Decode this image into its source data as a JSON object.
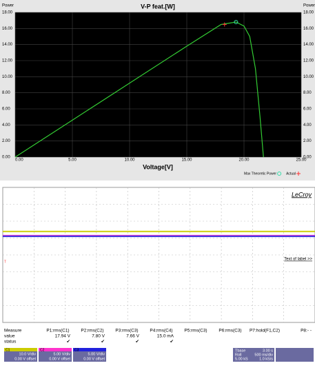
{
  "chart_data": {
    "type": "line",
    "title": "V-P feat.[W]",
    "y_label": "Power",
    "x_label": "Voltage[V]",
    "x": [
      0,
      5,
      10,
      15,
      18,
      19.3,
      20,
      20.5,
      21,
      21.4,
      21.7
    ],
    "series": [
      {
        "color": "#33cc33",
        "values": [
          0,
          4.6,
          9.2,
          13.8,
          16.5,
          16.8,
          16.3,
          15.0,
          11.0,
          5.0,
          0
        ]
      },
      {
        "name": "Max Theoretic Power",
        "color": "#33ddaa",
        "marker": "circle",
        "x": [
          19.3
        ],
        "values": [
          16.8
        ]
      },
      {
        "name": "Actual",
        "color": "#ff3333",
        "marker": "plus",
        "x": [
          18.3
        ],
        "values": [
          16.5
        ]
      }
    ],
    "xlim": [
      0,
      25
    ],
    "xticks": [
      {
        "value": 0,
        "label": "0.00"
      },
      {
        "value": 5,
        "label": "5.00"
      },
      {
        "value": 10,
        "label": "10.00"
      },
      {
        "value": 15,
        "label": "15.00"
      },
      {
        "value": 20,
        "label": "20.00"
      },
      {
        "value": 25,
        "label": "25.00"
      }
    ],
    "ylim": [
      0,
      18
    ],
    "yticks": [
      {
        "value": 0,
        "label": "0.00"
      },
      {
        "value": 2,
        "label": "2.00"
      },
      {
        "value": 4,
        "label": "4.00"
      },
      {
        "value": 6,
        "label": "6.00"
      },
      {
        "value": 8,
        "label": "8.00"
      },
      {
        "value": 10,
        "label": "10.00"
      },
      {
        "value": 12,
        "label": "12.00"
      },
      {
        "value": 14,
        "label": "14.00"
      },
      {
        "value": 16,
        "label": "16.00"
      },
      {
        "value": 18,
        "label": "18.00"
      }
    ],
    "grid": true,
    "legend": "bottom-right"
  },
  "scope": {
    "logo": "LeCroy",
    "label_link": "Text of label >>",
    "measure": {
      "headers": [
        "Measure",
        "P1:rms(C1)",
        "P2:rms(C2)",
        "P3:rms(C3)",
        "P4:rms(C4)",
        "P5:rms(C3)",
        "P6:rms(C3)",
        "P7:hold(F1,C2)",
        "P8:- -"
      ],
      "rows": [
        {
          "label": "value",
          "cells": [
            "17.94 V",
            "7.80 V",
            "7.66 V",
            "15.0 mA"
          ]
        },
        {
          "label": "status",
          "cells": [
            "✔",
            "✔",
            "✔",
            "✔"
          ]
        }
      ]
    },
    "channels": [
      {
        "name": "C1",
        "scale": "10.0 V/div",
        "offset": "0.00 V offset",
        "color": "#cccc00"
      },
      {
        "name": "C2",
        "scale": "5.00 V/div",
        "offset": "0.00 V offset",
        "color": "#ff33cc"
      },
      {
        "name": "C3",
        "scale": "5.00 V/div",
        "offset": "0.00 V offset",
        "color": "#2222dd"
      }
    ],
    "timebase": {
      "label": "Tbase",
      "value": "3.00 s",
      "mode": "Roll",
      "per_div": "500 ms/div",
      "samples": "5.00 kS",
      "rate": "1.0 kS/s"
    }
  }
}
